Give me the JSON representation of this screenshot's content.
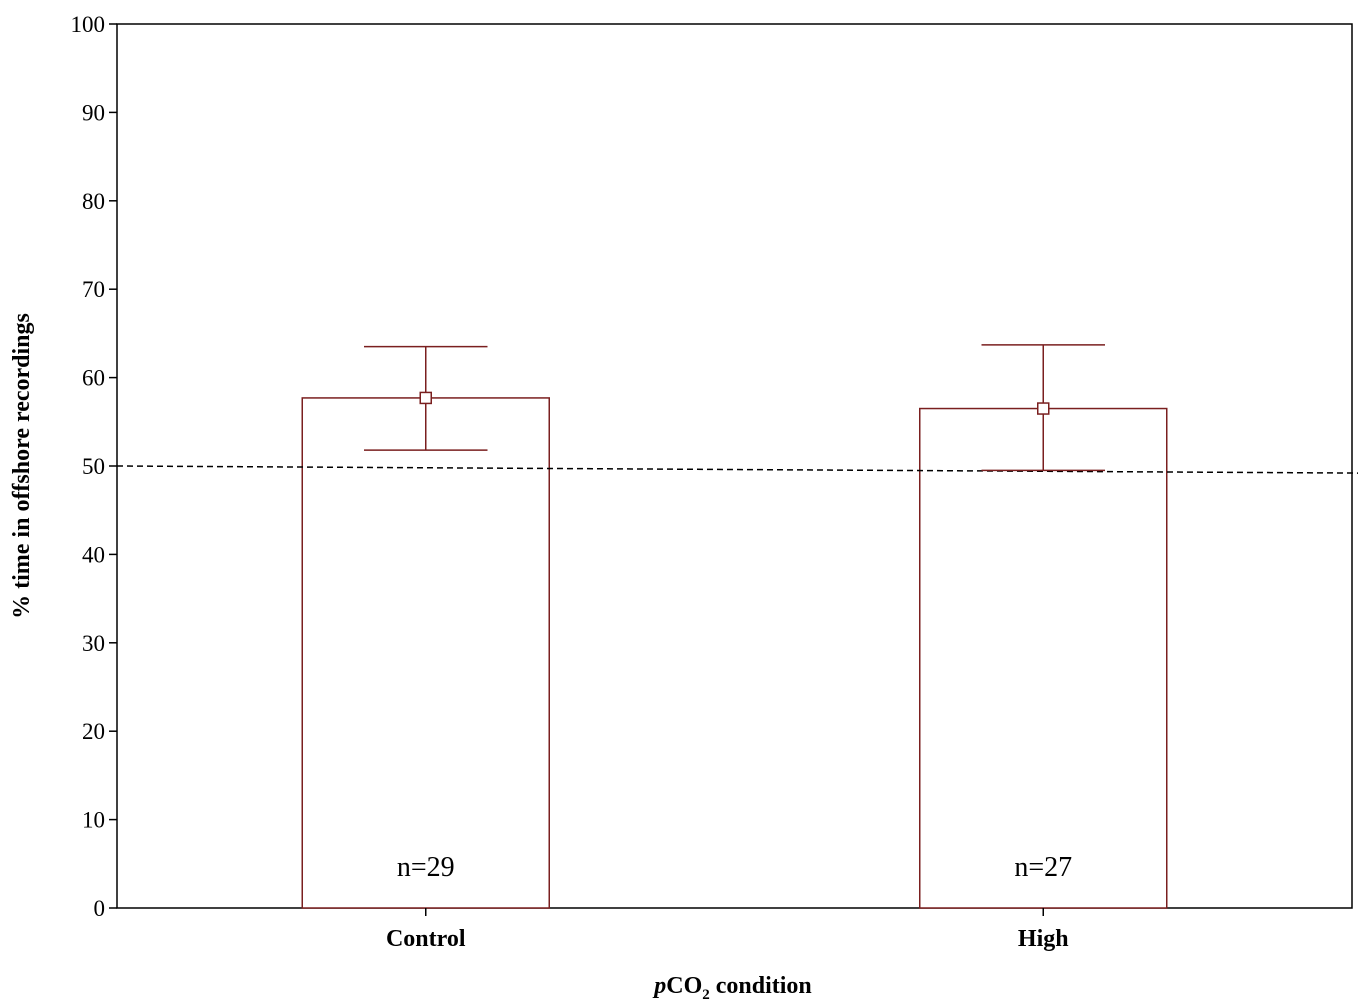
{
  "chart_data": {
    "type": "bar",
    "categories": [
      "Control",
      "High"
    ],
    "values": [
      57.7,
      56.5
    ],
    "error_upper": [
      63.5,
      63.7
    ],
    "error_lower": [
      51.8,
      49.5
    ],
    "annotations": [
      "n=29",
      "n=27"
    ],
    "reference_line": {
      "y_start": 50.0,
      "y_end": 49.2,
      "style": "dashed"
    },
    "ylabel": "% time in offshore recordings",
    "xlabel_italic": "p",
    "xlabel_main": "CO",
    "xlabel_sub": "2",
    "xlabel_rest": " condition",
    "ylim": [
      0,
      100
    ],
    "yticks": [
      "0",
      "10",
      "20",
      "30",
      "40",
      "50",
      "60",
      "70",
      "80",
      "90",
      "100"
    ],
    "bar_color": "#7a1f1f",
    "grid": false,
    "legend": "none"
  }
}
